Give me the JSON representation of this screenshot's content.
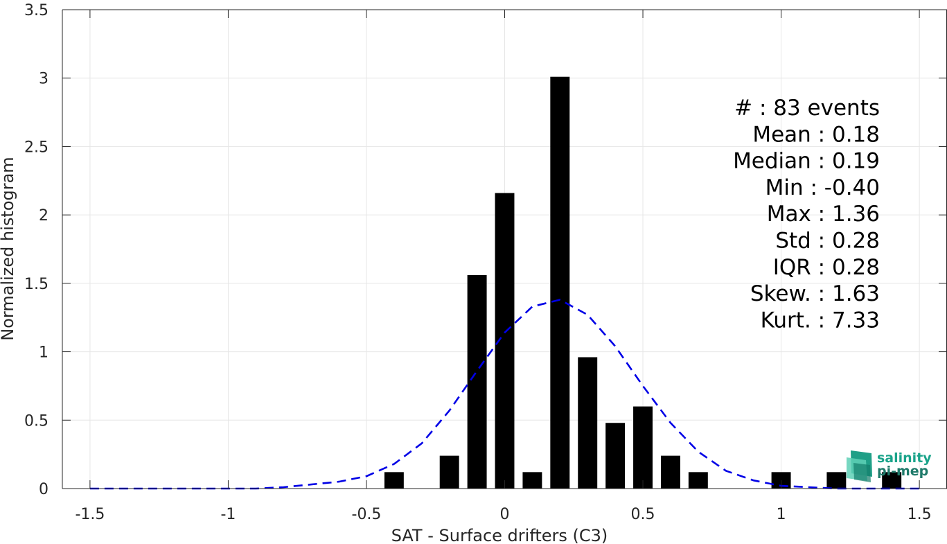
{
  "chart_data": {
    "type": "bar",
    "xlabel": "SAT - Surface drifters (C3)",
    "ylabel": "Normalized histogram",
    "xlim": [
      -1.6,
      1.6
    ],
    "ylim": [
      0,
      3.5
    ],
    "x_ticks": [
      -1.5,
      -1,
      -0.5,
      0,
      0.5,
      1,
      1.5
    ],
    "x_tick_labels": [
      "-1.5",
      "-1",
      "-0.5",
      "0",
      "0.5",
      "1",
      "1.5"
    ],
    "y_ticks": [
      0,
      0.5,
      1,
      1.5,
      2,
      2.5,
      3,
      3.5
    ],
    "y_tick_labels": [
      "0",
      "0.5",
      "1",
      "1.5",
      "2",
      "2.5",
      "3",
      "3.5"
    ],
    "grid": true,
    "bar_width": 0.07,
    "bar_color": "#000000",
    "bars": [
      {
        "x": -0.4,
        "y": 0.12
      },
      {
        "x": -0.2,
        "y": 0.24
      },
      {
        "x": -0.1,
        "y": 1.56
      },
      {
        "x": 0.0,
        "y": 2.16
      },
      {
        "x": 0.1,
        "y": 0.12
      },
      {
        "x": 0.2,
        "y": 3.01
      },
      {
        "x": 0.3,
        "y": 0.96
      },
      {
        "x": 0.4,
        "y": 0.48
      },
      {
        "x": 0.5,
        "y": 0.6
      },
      {
        "x": 0.6,
        "y": 0.24
      },
      {
        "x": 0.7,
        "y": 0.12
      },
      {
        "x": 1.0,
        "y": 0.12
      },
      {
        "x": 1.2,
        "y": 0.12
      },
      {
        "x": 1.4,
        "y": 0.12
      }
    ],
    "fit_curve": {
      "style": "dashed",
      "color": "#0000e6",
      "x": [
        -1.5,
        -1.4,
        -1.3,
        -1.2,
        -1.1,
        -1.0,
        -0.9,
        -0.8,
        -0.7,
        -0.6,
        -0.5,
        -0.4,
        -0.3,
        -0.2,
        -0.1,
        0.0,
        0.1,
        0.2,
        0.3,
        0.4,
        0.5,
        0.6,
        0.7,
        0.8,
        0.9,
        1.0,
        1.1,
        1.2,
        1.3,
        1.4,
        1.5
      ],
      "y": [
        0.0,
        0.0,
        0.0,
        0.0,
        0.0,
        0.0,
        0.0,
        0.01,
        0.03,
        0.05,
        0.09,
        0.18,
        0.33,
        0.57,
        0.86,
        1.14,
        1.33,
        1.38,
        1.27,
        1.04,
        0.75,
        0.48,
        0.27,
        0.13,
        0.06,
        0.02,
        0.01,
        0.0,
        0.0,
        0.0,
        0.0
      ]
    },
    "stats": [
      {
        "label": "#  :",
        "value": "83 events"
      },
      {
        "label": "Mean :",
        "value": "0.18"
      },
      {
        "label": "Median :",
        "value": "0.19"
      },
      {
        "label": "Min :",
        "value": "-0.40"
      },
      {
        "label": "Max :",
        "value": "1.36"
      },
      {
        "label": "Std :",
        "value": "0.28"
      },
      {
        "label": "IQR :",
        "value": "0.28"
      },
      {
        "label": "Skew. :",
        "value": "1.63"
      },
      {
        "label": "Kurt. :",
        "value": "7.33"
      }
    ]
  },
  "logo": {
    "line1": "salinity",
    "line2": "pi-mep",
    "color": "#1aa38a"
  }
}
